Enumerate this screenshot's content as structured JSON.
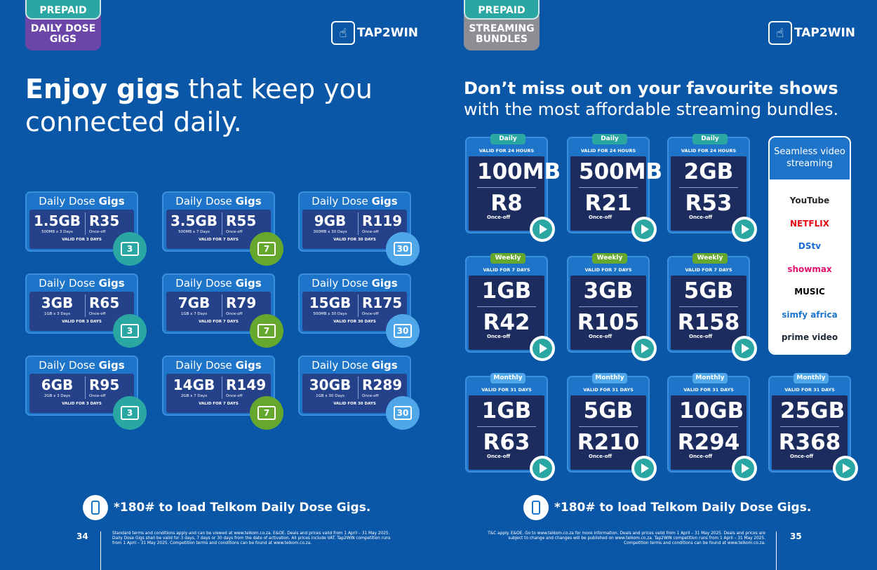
{
  "left": {
    "tag_top": "PREPAID",
    "tag_bottom": "DAILY DOSE GIGS",
    "logo": "TAP2WIN",
    "headline_bold": "Enjoy gigs",
    "headline_rest": " that keep you connected daily.",
    "cards": [
      {
        "title_a": "Daily Dose ",
        "title_b": "Gigs",
        "gb": "1.5GB",
        "detail": "500MB x 3 Days",
        "price": "R35",
        "type": "Once-off",
        "valid": "VALID FOR 3 DAYS",
        "cal": "3",
        "color": "teal"
      },
      {
        "title_a": "Daily Dose ",
        "title_b": "Gigs",
        "gb": "3.5GB",
        "detail": "500MB x 7 Days",
        "price": "R55",
        "type": "Once-off",
        "valid": "VALID FOR 7 DAYS",
        "cal": "7",
        "color": "green"
      },
      {
        "title_a": "Daily Dose ",
        "title_b": "Gigs",
        "gb": "9GB",
        "detail": "300MB x 30 Days",
        "price": "R119",
        "type": "Once-off",
        "valid": "VALID FOR 30 DAYS",
        "cal": "30",
        "color": "blue"
      },
      {
        "title_a": "Daily Dose ",
        "title_b": "Gigs",
        "gb": "3GB",
        "detail": "1GB x 3 Days",
        "price": "R65",
        "type": "Once-off",
        "valid": "VALID FOR 3 DAYS",
        "cal": "3",
        "color": "teal"
      },
      {
        "title_a": "Daily Dose ",
        "title_b": "Gigs",
        "gb": "7GB",
        "detail": "1GB x 7 Days",
        "price": "R79",
        "type": "Once-off",
        "valid": "VALID FOR 7 DAYS",
        "cal": "7",
        "color": "green"
      },
      {
        "title_a": "Daily Dose ",
        "title_b": "Gigs",
        "gb": "15GB",
        "detail": "500MB x 30 Days",
        "price": "R175",
        "type": "Once-off",
        "valid": "VALID FOR 30 DAYS",
        "cal": "30",
        "color": "blue"
      },
      {
        "title_a": "Daily Dose ",
        "title_b": "Gigs",
        "gb": "6GB",
        "detail": "2GB x 3 Days",
        "price": "R95",
        "type": "Once-off",
        "valid": "VALID FOR 3 DAYS",
        "cal": "3",
        "color": "teal"
      },
      {
        "title_a": "Daily Dose ",
        "title_b": "Gigs",
        "gb": "14GB",
        "detail": "2GB x 7 Days",
        "price": "R149",
        "type": "Once-off",
        "valid": "VALID FOR 7 DAYS",
        "cal": "7",
        "color": "green"
      },
      {
        "title_a": "Daily Dose ",
        "title_b": "Gigs",
        "gb": "30GB",
        "detail": "1GB x 30 Days",
        "price": "R289",
        "type": "Once-off",
        "valid": "VALID FOR 30 DAYS",
        "cal": "30",
        "color": "blue"
      }
    ],
    "load_text": "*180# to load Telkom Daily Dose Gigs.",
    "page_number": "34",
    "terms": "Standard terms and conditions apply and can be viewed at www.telkom.co.za. E&OE. Deals and prices valid from 1 April – 31 May 2025. Daily Dose Gigs shall be valid for 3 days, 7 days or 30 days from the date of activation. All prices include VAT. Tap2WIN competition runs from 1 April – 31 May 2025. Competition terms and conditions can be found at www.telkom.co.za."
  },
  "right": {
    "tag_top": "PREPAID",
    "tag_bottom": "STREAMING BUNDLES",
    "logo": "TAP2WIN",
    "headline_bold": "Don’t miss out on your favourite shows",
    "headline_rest": " with the most affordable streaming bundles.",
    "cards": [
      {
        "pill": "Daily",
        "valid": "VALID FOR 24 HOURS",
        "gb": "100MB",
        "price": "R8",
        "type": "Once-off",
        "color": "teal"
      },
      {
        "pill": "Daily",
        "valid": "VALID FOR 24 HOURS",
        "gb": "500MB",
        "price": "R21",
        "type": "Once-off",
        "color": "teal"
      },
      {
        "pill": "Daily",
        "valid": "VALID FOR 24 HOURS",
        "gb": "2GB",
        "price": "R53",
        "type": "Once-off",
        "color": "teal"
      },
      {
        "pill": "Weekly",
        "valid": "VALID FOR 7 DAYS",
        "gb": "1GB",
        "price": "R42",
        "type": "Once-off",
        "color": "green"
      },
      {
        "pill": "Weekly",
        "valid": "VALID FOR 7 DAYS",
        "gb": "3GB",
        "price": "R105",
        "type": "Once-off",
        "color": "green"
      },
      {
        "pill": "Weekly",
        "valid": "VALID FOR 7 DAYS",
        "gb": "5GB",
        "price": "R158",
        "type": "Once-off",
        "color": "green"
      },
      {
        "pill": "Monthly",
        "valid": "VALID FOR 31 DAYS",
        "gb": "1GB",
        "price": "R63",
        "type": "Once-off",
        "color": "blue"
      },
      {
        "pill": "Monthly",
        "valid": "VALID FOR 31 DAYS",
        "gb": "5GB",
        "price": "R210",
        "type": "Once-off",
        "color": "blue"
      },
      {
        "pill": "Monthly",
        "valid": "VALID FOR 31 DAYS",
        "gb": "10GB",
        "price": "R294",
        "type": "Once-off",
        "color": "blue"
      },
      {
        "pill": "Monthly",
        "valid": "VALID FOR 31 DAYS",
        "gb": "25GB",
        "price": "R368",
        "type": "Once-off",
        "color": "blue"
      }
    ],
    "services_title": "Seamless video streaming",
    "services": [
      {
        "name": "YouTube",
        "color": "#282828"
      },
      {
        "name": "NETFLIX",
        "color": "#e50914"
      },
      {
        "name": "DStv",
        "color": "#1a6ad6"
      },
      {
        "name": "showmax",
        "color": "#e3106e"
      },
      {
        "name": "MUSIC",
        "color": "#000000"
      },
      {
        "name": "simfy africa",
        "color": "#1e74c8"
      },
      {
        "name": "prime video",
        "color": "#1f2a36"
      }
    ],
    "load_text": "*180# to load Telkom Daily Dose Gigs.",
    "page_number": "35",
    "terms": "T&C apply. E&OE. Go to www.telkom.co.za for more information. Deals and prices valid from 1 April – 31 May 2025. Deals and prices are subject to change and changes will be published on www.telkom.co.za. Tap2WIN competition runs from 1 April – 31 May 2025. Competition terms and conditions can be found at www.telkom.co.za."
  }
}
